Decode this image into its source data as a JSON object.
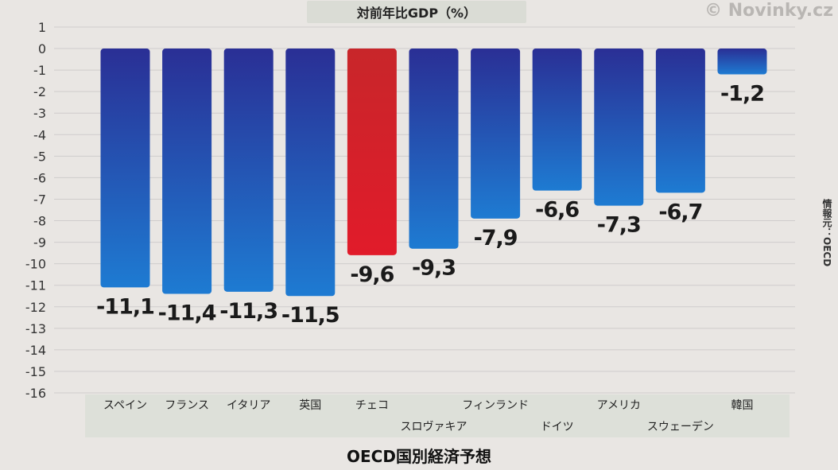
{
  "title": "対前年比GDP（%）",
  "watermark": "© Novinky.cz",
  "source_note": "情報元：OECD",
  "footer_title": "OECD国別経済予想",
  "colors": {
    "bar_top": "#2a2f95",
    "bar_bottom": "#1e7bd2",
    "highlight_top": "#c8262a",
    "highlight_bottom": "#e11b2a"
  },
  "chart_data": {
    "type": "bar",
    "title": "対前年比GDP（%）",
    "categories": [
      "スペイン",
      "フランス",
      "イタリア",
      "英国",
      "チェコ",
      "スロヴァキア",
      "フィンランド",
      "ドイツ",
      "アメリカ",
      "スウェーデン",
      "韓国"
    ],
    "values": [
      -11.1,
      -11.4,
      -11.3,
      -11.5,
      -9.6,
      -9.3,
      -7.9,
      -6.6,
      -7.3,
      -6.7,
      -1.2
    ],
    "value_labels": [
      "-11,1",
      "-11,4",
      "-11,3",
      "-11,5",
      "-9,6",
      "-9,3",
      "-7,9",
      "-6,6",
      "-7,3",
      "-6,7",
      "-1,2"
    ],
    "highlight_index": 4,
    "ylim": [
      -16,
      1
    ],
    "yticks": [
      "1",
      "0",
      "-1",
      "-2",
      "-3",
      "-4",
      "-5",
      "-6",
      "-7",
      "-8",
      "-9",
      "-10",
      "-11",
      "-12",
      "-13",
      "-14",
      "-15",
      "-16"
    ],
    "grid": true,
    "xlabel": "",
    "ylabel": ""
  }
}
